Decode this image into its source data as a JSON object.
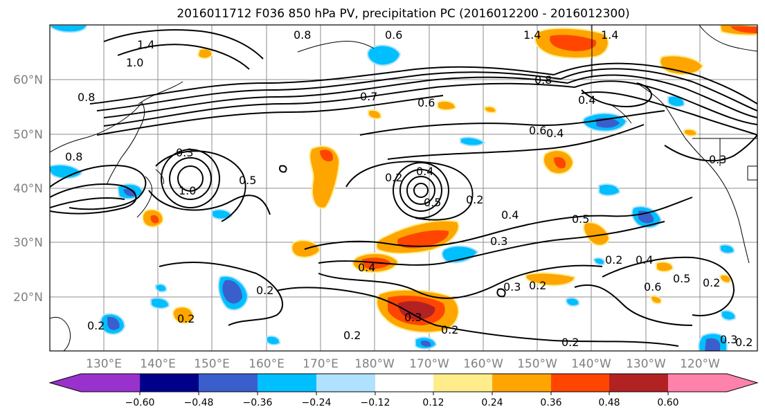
{
  "title": "2016011712 F036 850 hPa PV, precipitation PC (2016012200 - 2016012300)",
  "lat_labels": [
    "60°N",
    "50°N",
    "40°N",
    "30°N",
    "20°N"
  ],
  "lon_labels": [
    "130°E",
    "140°E",
    "150°E",
    "160°E",
    "170°E",
    "180°W",
    "170°W",
    "160°W",
    "150°W",
    "140°W",
    "130°W",
    "120°W"
  ],
  "colorbar": {
    "colors": [
      "#9932CC",
      "#00008B",
      "#3A5FCD",
      "#00BFFF",
      "#B0E2FF",
      "#FFFFFF",
      "#FFEC8B",
      "#FFA500",
      "#FF4500",
      "#B22222",
      "#FF82AB"
    ],
    "tick_labels": [
      "−0.60",
      "−0.48",
      "−0.36",
      "−0.24",
      "−0.12",
      "0.12",
      "0.24",
      "0.36",
      "0.48",
      "0.60"
    ]
  },
  "contour_labels": [
    "0.8",
    "1.0",
    "1.4",
    "0.8",
    "0.6",
    "1.4",
    "1.4",
    "0.8",
    "0.7",
    "0.6",
    "0.8",
    "0.3",
    "1.0",
    "0.5",
    "0.2",
    "0.4",
    "0.5",
    "0.2",
    "0.4",
    "0.5",
    "0.3",
    "0.4",
    "0.2",
    "0.4",
    "0.6",
    "0.4",
    "0.2",
    "0.3",
    "0.2",
    "0.3",
    "0.2",
    "0.2",
    "0.2",
    "0.2",
    "0.4",
    "0.6",
    "0.5",
    "0.2",
    "0.2",
    "0.3",
    "0.2",
    "0.3"
  ]
}
